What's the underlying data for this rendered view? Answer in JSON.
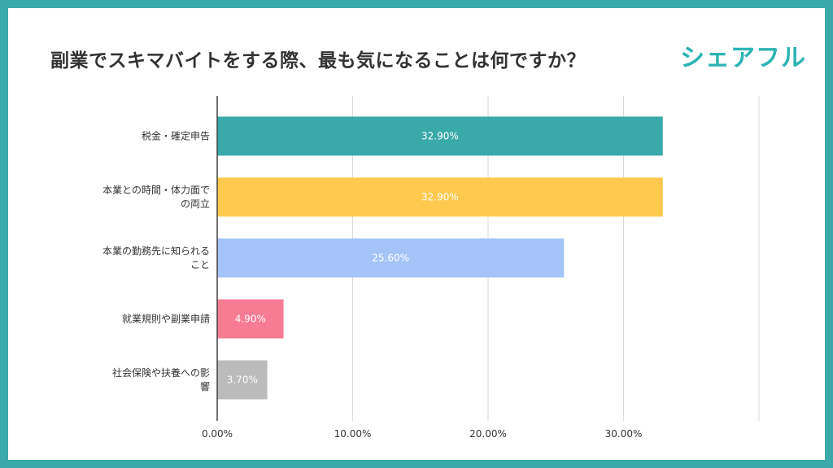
{
  "title": "副業でスキマバイトをする際、最も気になることは何ですか？",
  "logo_text": "シェアフル",
  "colors": {
    "frame": "#3aa9a9",
    "logo": "#2cb3b3"
  },
  "chart_data": {
    "type": "bar",
    "orientation": "horizontal",
    "categories": [
      [
        "税金・確定申告"
      ],
      [
        "本業との時間・体力面で",
        "の両立"
      ],
      [
        "本業の勤務先に知られる",
        "こと"
      ],
      [
        "就業規則や副業申請"
      ],
      [
        "社会保険や扶養への影",
        "響"
      ]
    ],
    "values": [
      32.9,
      32.9,
      25.6,
      4.9,
      3.7
    ],
    "value_labels": [
      "32.90%",
      "32.90%",
      "25.60%",
      "4.90%",
      "3.70%"
    ],
    "colors": [
      "#3aa9a9",
      "#ffc94e",
      "#a4c4f8",
      "#f77b93",
      "#bbbbbb"
    ],
    "xlim": [
      0,
      40
    ],
    "x_ticks": [
      0,
      10,
      20,
      30,
      40
    ],
    "x_tick_labels": [
      "0.00%",
      "10.00%",
      "20.00%",
      "30.00%",
      ""
    ],
    "grid": true
  }
}
